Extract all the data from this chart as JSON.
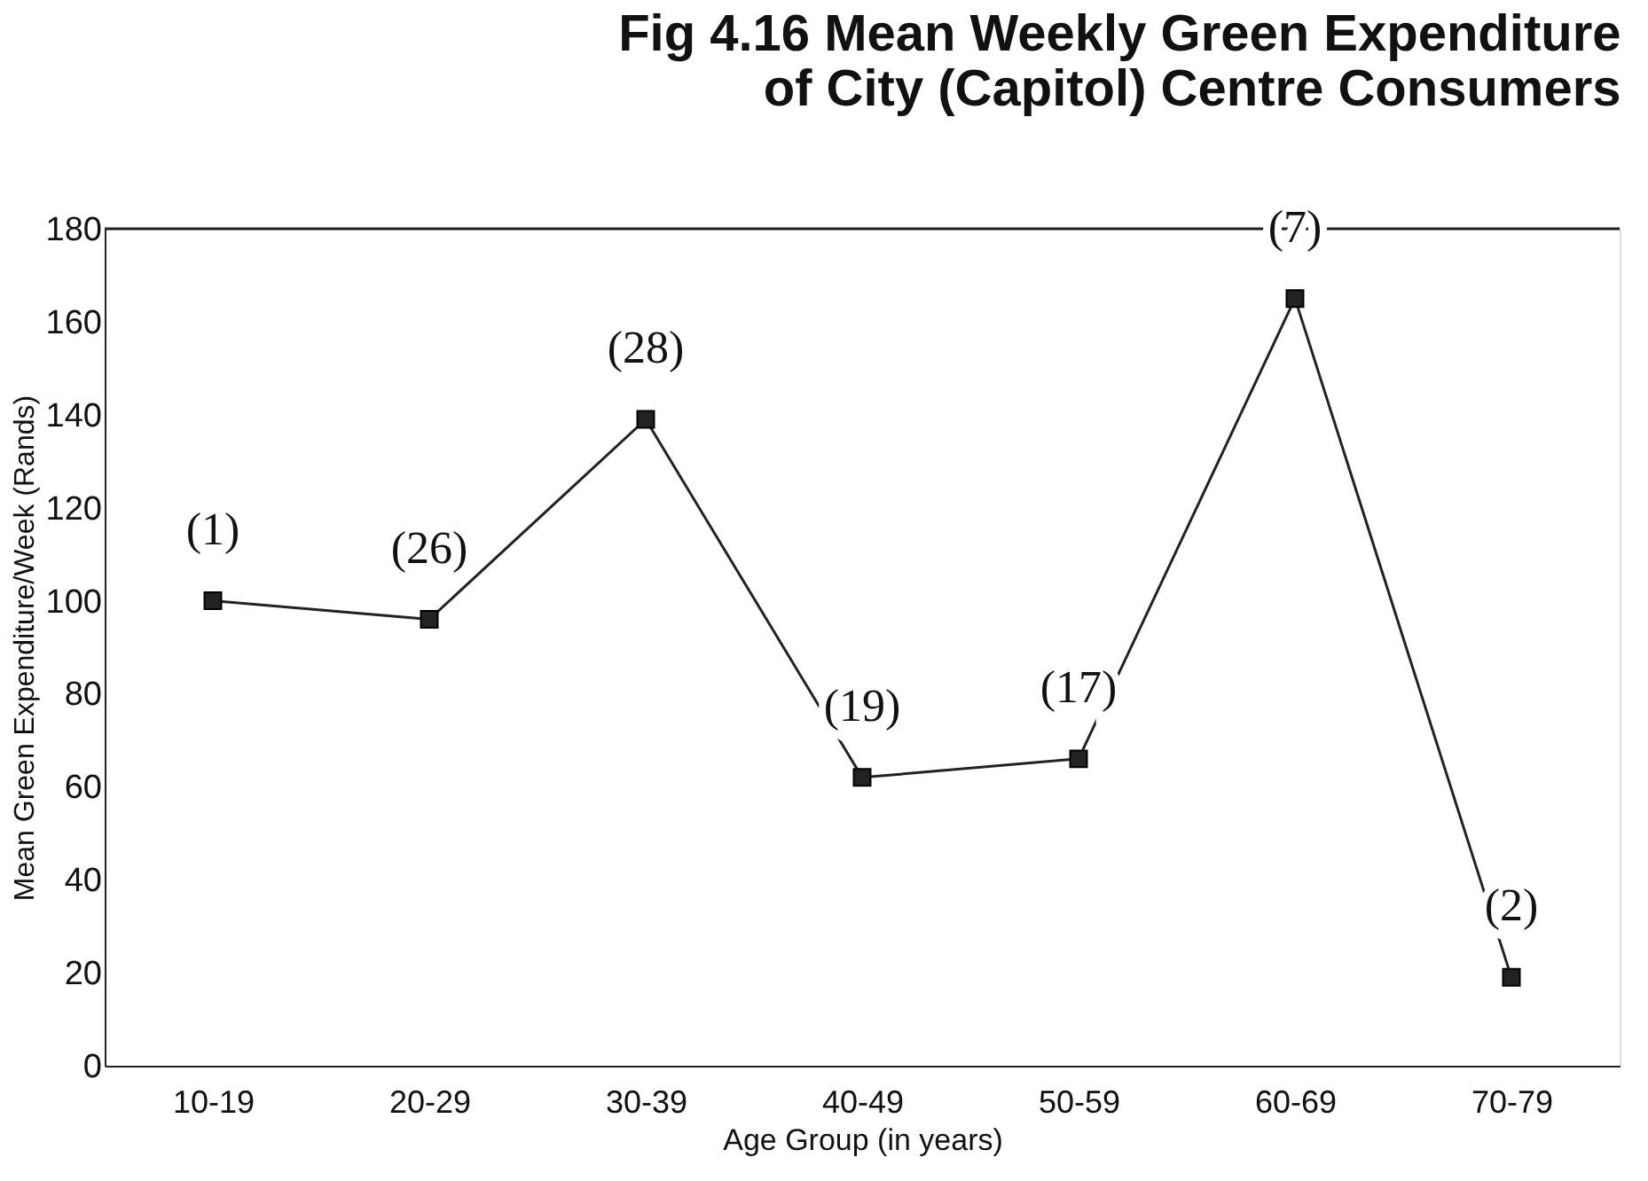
{
  "chart_data": {
    "type": "line",
    "title": [
      "Fig 4.16 Mean Weekly Green Expenditure",
      "of City (Capitol) Centre Consumers"
    ],
    "xlabel": "Age Group (in years)",
    "ylabel": "Mean Green Expenditure/Week (Rands)",
    "categories": [
      "10-19",
      "20-29",
      "30-39",
      "40-49",
      "50-59",
      "60-69",
      "70-79"
    ],
    "series": [
      {
        "color": "#222222",
        "values": [
          100,
          96,
          139,
          62,
          66,
          165,
          19
        ]
      }
    ],
    "ylim": [
      0,
      180
    ],
    "yticks": [
      0,
      20,
      40,
      60,
      80,
      100,
      120,
      140,
      160,
      180
    ],
    "marker": "square",
    "line_style": "solid",
    "grid": false,
    "ref_lines": [
      {
        "axis": "y",
        "value": 180,
        "color": "#222222"
      }
    ],
    "annotations": [
      "(1)",
      "(26)",
      "(28)",
      "(19)",
      "(17)",
      "(7)",
      "(2)"
    ]
  }
}
